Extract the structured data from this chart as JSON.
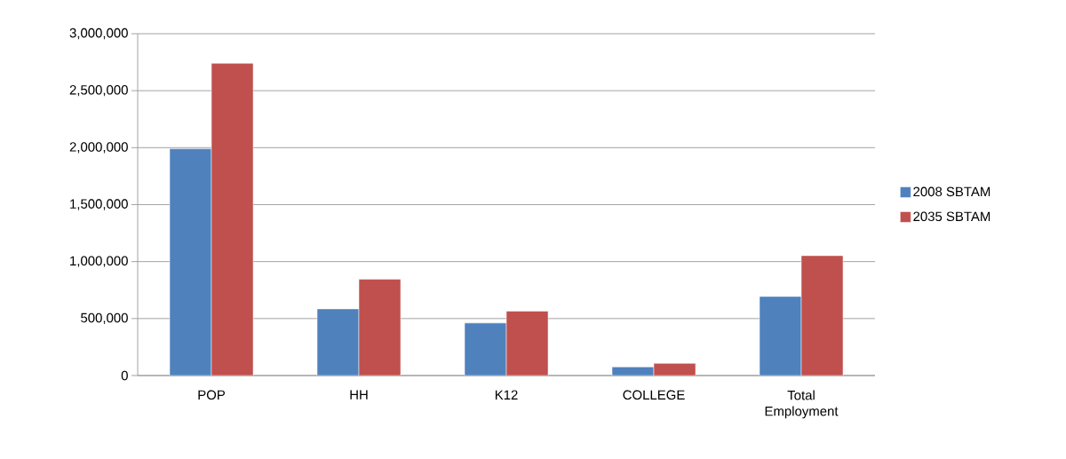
{
  "chart_data": {
    "type": "bar",
    "categories": [
      "POP",
      "HH",
      "K12",
      "COLLEGE",
      "Total Employment"
    ],
    "series": [
      {
        "name": "2008 SBTAM",
        "color": "#4f81bd",
        "values": [
          1990000,
          585000,
          461000,
          75000,
          694000
        ]
      },
      {
        "name": "2035 SBTAM",
        "color": "#c0504d",
        "values": [
          2740000,
          845000,
          565000,
          107000,
          1052000
        ]
      }
    ],
    "ylim": [
      0,
      3000000
    ],
    "yticks": [
      {
        "value": 0,
        "label": "0"
      },
      {
        "value": 500000,
        "label": "500,000"
      },
      {
        "value": 1000000,
        "label": "1,000,000"
      },
      {
        "value": 1500000,
        "label": "1,500,000"
      },
      {
        "value": 2000000,
        "label": "2,000,000"
      },
      {
        "value": 2500000,
        "label": "2,500,000"
      },
      {
        "value": 3000000,
        "label": "3,000,000"
      }
    ],
    "grid": "y",
    "legend": "right"
  }
}
